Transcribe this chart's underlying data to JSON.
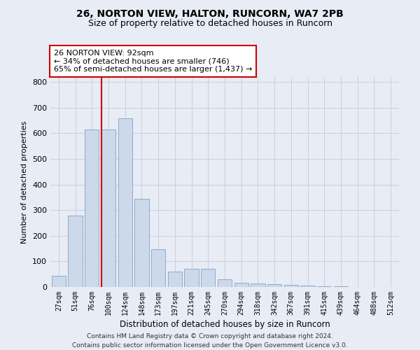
{
  "title": "26, NORTON VIEW, HALTON, RUNCORN, WA7 2PB",
  "subtitle": "Size of property relative to detached houses in Runcorn",
  "xlabel": "Distribution of detached houses by size in Runcorn",
  "ylabel": "Number of detached properties",
  "bar_labels": [
    "27sqm",
    "51sqm",
    "76sqm",
    "100sqm",
    "124sqm",
    "148sqm",
    "173sqm",
    "197sqm",
    "221sqm",
    "245sqm",
    "270sqm",
    "294sqm",
    "318sqm",
    "342sqm",
    "367sqm",
    "391sqm",
    "415sqm",
    "439sqm",
    "464sqm",
    "488sqm",
    "512sqm"
  ],
  "bar_values": [
    45,
    280,
    615,
    615,
    660,
    345,
    148,
    60,
    70,
    70,
    30,
    17,
    13,
    10,
    8,
    5,
    3,
    2,
    1,
    1,
    1
  ],
  "bar_color": "#ccd9ea",
  "bar_edge_color": "#8eaacb",
  "grid_color": "#c8d0de",
  "background_color": "#e8ecf4",
  "red_line_index": 3,
  "annotation_text": "26 NORTON VIEW: 92sqm\n← 34% of detached houses are smaller (746)\n65% of semi-detached houses are larger (1,437) →",
  "annotation_box_color": "#ffffff",
  "annotation_box_edge": "#cc0000",
  "footer_text": "Contains HM Land Registry data © Crown copyright and database right 2024.\nContains public sector information licensed under the Open Government Licence v3.0.",
  "ylim": [
    0,
    820
  ],
  "yticks": [
    0,
    100,
    200,
    300,
    400,
    500,
    600,
    700,
    800
  ]
}
